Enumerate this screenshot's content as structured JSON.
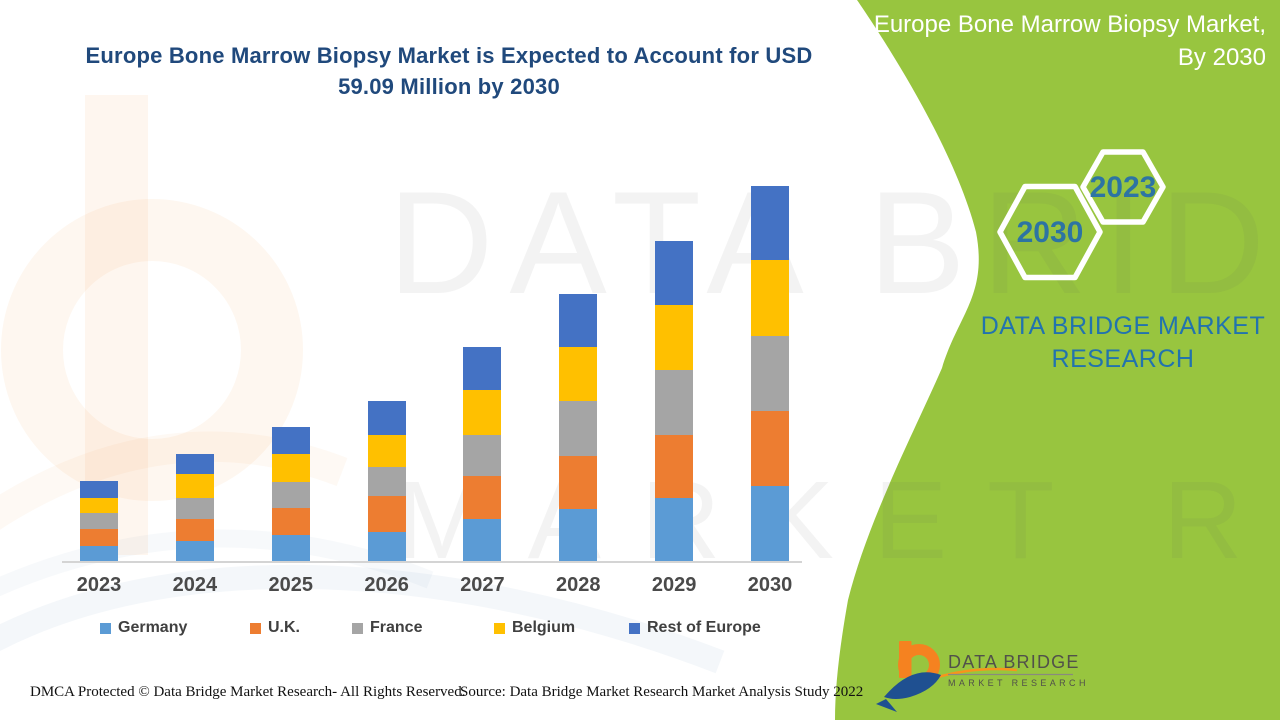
{
  "header": {
    "main_title_line1": "Europe Bone Marrow Biopsy Market is Expected to Account for USD",
    "main_title_line2": "59.09 Million by 2030",
    "panel_title_line1": "Europe Bone Marrow Biopsy Market,",
    "panel_title_line2": "By 2030"
  },
  "panel": {
    "hex_small_label": "2023",
    "hex_large_label": "2030",
    "brand_line1": "DATA BRIDGE MARKET",
    "brand_line2": "RESEARCH"
  },
  "logo": {
    "name": "DATA BRIDGE",
    "subtitle": "MARKET RESEARCH"
  },
  "watermark": {
    "line1": "DATA BRIDGE",
    "line2": "MARKET RESEARCH"
  },
  "footer": {
    "left": "DMCA Protected © Data Bridge Market Research- All Rights Reserved.",
    "right": "Source: Data Bridge Market Research Market Analysis Study 2022"
  },
  "colors": {
    "germany": "#5B9BD5",
    "uk": "#ED7D31",
    "france": "#A5A5A5",
    "belgium": "#FFC000",
    "rest_of_europe": "#4472C4",
    "green_panel": "#98C53F",
    "title_navy": "#20497C",
    "steel_blue": "#2D74A3"
  },
  "chart_data": {
    "type": "bar",
    "stacked": true,
    "title": "Europe Bone Marrow Biopsy Market is Expected to Account for USD 59.09 Million by 2030",
    "unit": "USD Million",
    "stated_total_2030": 59.09,
    "xlabel": "",
    "ylabel": "",
    "y_axis_visible": false,
    "grid": false,
    "legend_position": "bottom",
    "categories": [
      "2023",
      "2024",
      "2025",
      "2026",
      "2027",
      "2028",
      "2029",
      "2030"
    ],
    "series": [
      {
        "name": "Germany",
        "color": "#5B9BD5",
        "values": [
          2.3,
          3.2,
          4.1,
          4.6,
          6.6,
          8.2,
          10.0,
          11.8
        ]
      },
      {
        "name": "U.K.",
        "color": "#ED7D31",
        "values": [
          2.8,
          3.4,
          4.2,
          5.7,
          6.8,
          8.4,
          9.8,
          11.8
        ]
      },
      {
        "name": "France",
        "color": "#A5A5A5",
        "values": [
          2.4,
          3.4,
          4.2,
          4.6,
          6.5,
          8.6,
          10.3,
          11.9
        ]
      },
      {
        "name": "Belgium",
        "color": "#FFC000",
        "values": [
          2.4,
          3.7,
          4.3,
          5.0,
          7.0,
          8.6,
          10.2,
          11.9
        ]
      },
      {
        "name": "Rest of Europe",
        "color": "#4472C4",
        "values": [
          2.7,
          3.1,
          4.3,
          5.3,
          6.8,
          8.3,
          10.1,
          11.7
        ]
      }
    ],
    "estimated_totals": [
      12.6,
      16.8,
      21.1,
      25.2,
      33.7,
      42.1,
      50.4,
      59.1
    ]
  }
}
